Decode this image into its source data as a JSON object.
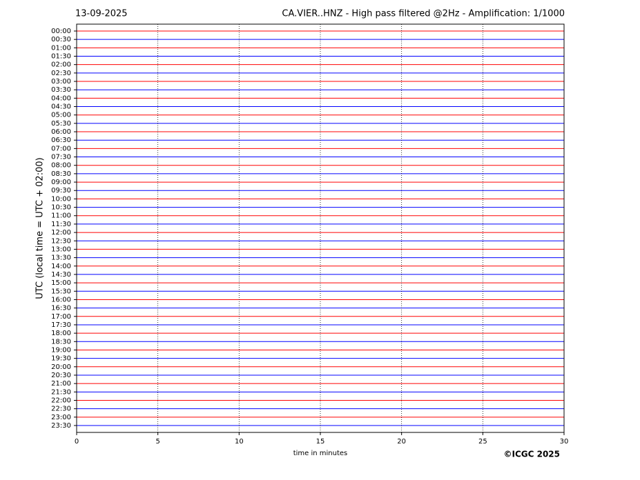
{
  "chart_data": {
    "type": "helicorder",
    "date": "13-09-2025",
    "title": "CA.VIER..HNZ - High pass filtered @2Hz - Amplification: 1/1000",
    "xlabel": "time in minutes",
    "ylabel": "UTC (local time = UTC + 02:00)",
    "categories": [
      "00:00",
      "00:30",
      "01:00",
      "01:30",
      "02:00",
      "02:30",
      "03:00",
      "03:30",
      "04:00",
      "04:30",
      "05:00",
      "05:30",
      "06:00",
      "06:30",
      "07:00",
      "07:30",
      "08:00",
      "08:30",
      "09:00",
      "09:30",
      "10:00",
      "10:30",
      "11:00",
      "11:30",
      "12:00",
      "12:30",
      "13:00",
      "13:30",
      "14:00",
      "14:30",
      "15:00",
      "15:30",
      "16:00",
      "16:30",
      "17:00",
      "17:30",
      "18:00",
      "18:30",
      "19:00",
      "19:30",
      "20:00",
      "20:30",
      "21:00",
      "21:30",
      "22:00",
      "22:30",
      "23:00",
      "23:30"
    ],
    "trace_colors": [
      "#ff0000",
      "#0000ff"
    ],
    "xlim": [
      0,
      30
    ],
    "xticks": [
      0,
      5,
      10,
      15,
      20,
      25,
      30
    ],
    "grid": true
  },
  "footer": "©ICGC 2025"
}
